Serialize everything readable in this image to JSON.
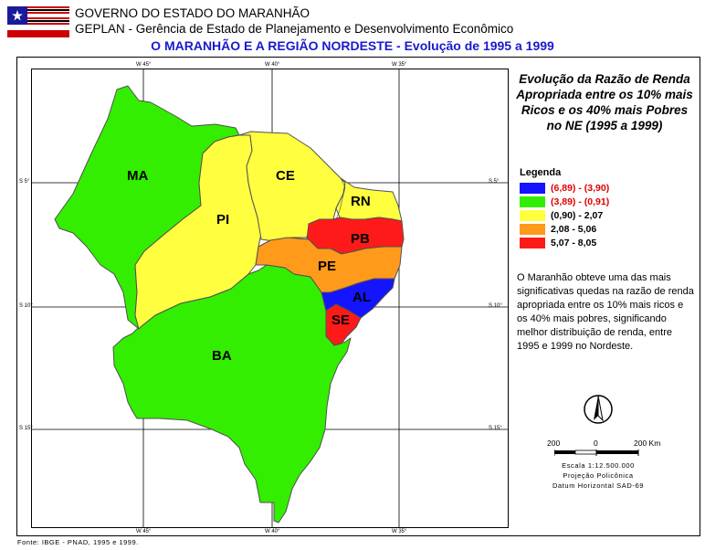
{
  "header": {
    "org": "GOVERNO DO ESTADO DO MARANHÃO",
    "dept": "GEPLAN - Gerência de Estado de Planejamento e Desenvolvimento Econômico",
    "title": "O MARANHÃO E A REGIÃO NORDESTE - Evolução de 1995 a 1999"
  },
  "map": {
    "grid_labels": {
      "lon_top": [
        "W 45°",
        "W 40°",
        "W 35°"
      ],
      "lon_bottom": [
        "W 45°",
        "W 40°",
        "W 35°"
      ],
      "lat_left": [
        "S 5°",
        "S 10°",
        "S 15°"
      ],
      "lat_right": [
        "S 5°",
        "S 10°",
        "S 15°"
      ]
    },
    "states": [
      {
        "abbr": "MA",
        "class_index": 1
      },
      {
        "abbr": "PI",
        "class_index": 2
      },
      {
        "abbr": "CE",
        "class_index": 2
      },
      {
        "abbr": "RN",
        "class_index": 2
      },
      {
        "abbr": "PB",
        "class_index": 4
      },
      {
        "abbr": "PE",
        "class_index": 3
      },
      {
        "abbr": "AL",
        "class_index": 0
      },
      {
        "abbr": "SE",
        "class_index": 4
      },
      {
        "abbr": "BA",
        "class_index": 1
      }
    ]
  },
  "panel": {
    "title": "Evolução da Razão de Renda Apropriada entre os 10% mais Ricos e os 40% mais Pobres no NE (1995 a 1999)",
    "legend_title": "Legenda",
    "legend": [
      {
        "label": "(6,89) - (3,90)",
        "color": "#1414ff",
        "text_color": "#e00000"
      },
      {
        "label": "(3,89) - (0,91)",
        "color": "#33ee00",
        "text_color": "#e00000"
      },
      {
        "label": "(0,90) - 2,07",
        "color": "#ffff40",
        "text_color": "#000000"
      },
      {
        "label": "2,08 - 5,06",
        "color": "#ff9a1a",
        "text_color": "#000000"
      },
      {
        "label": "5,07 - 8,05",
        "color": "#ff1a1a",
        "text_color": "#000000"
      }
    ],
    "description": "O Maranhão obteve uma das mais significativas quedas na razão de renda apropriada entre os 10% mais ricos e os 40% mais pobres, significando melhor distribuição de renda, entre 1995 e 1999 no Nordeste.",
    "north_arrow": "north-arrow",
    "scale": {
      "left": "200",
      "mid": "0",
      "right": "200 Km"
    },
    "scale_text": "Escala 1:12.500.000",
    "projection": "Projeção Policônica",
    "datum": "Datum Horizontal SAD-69"
  },
  "footer": {
    "source": "Fonte: IBGE - PNAD, 1995 e 1999."
  },
  "colors": {
    "title": "#1a1acc",
    "border": "#505050"
  }
}
